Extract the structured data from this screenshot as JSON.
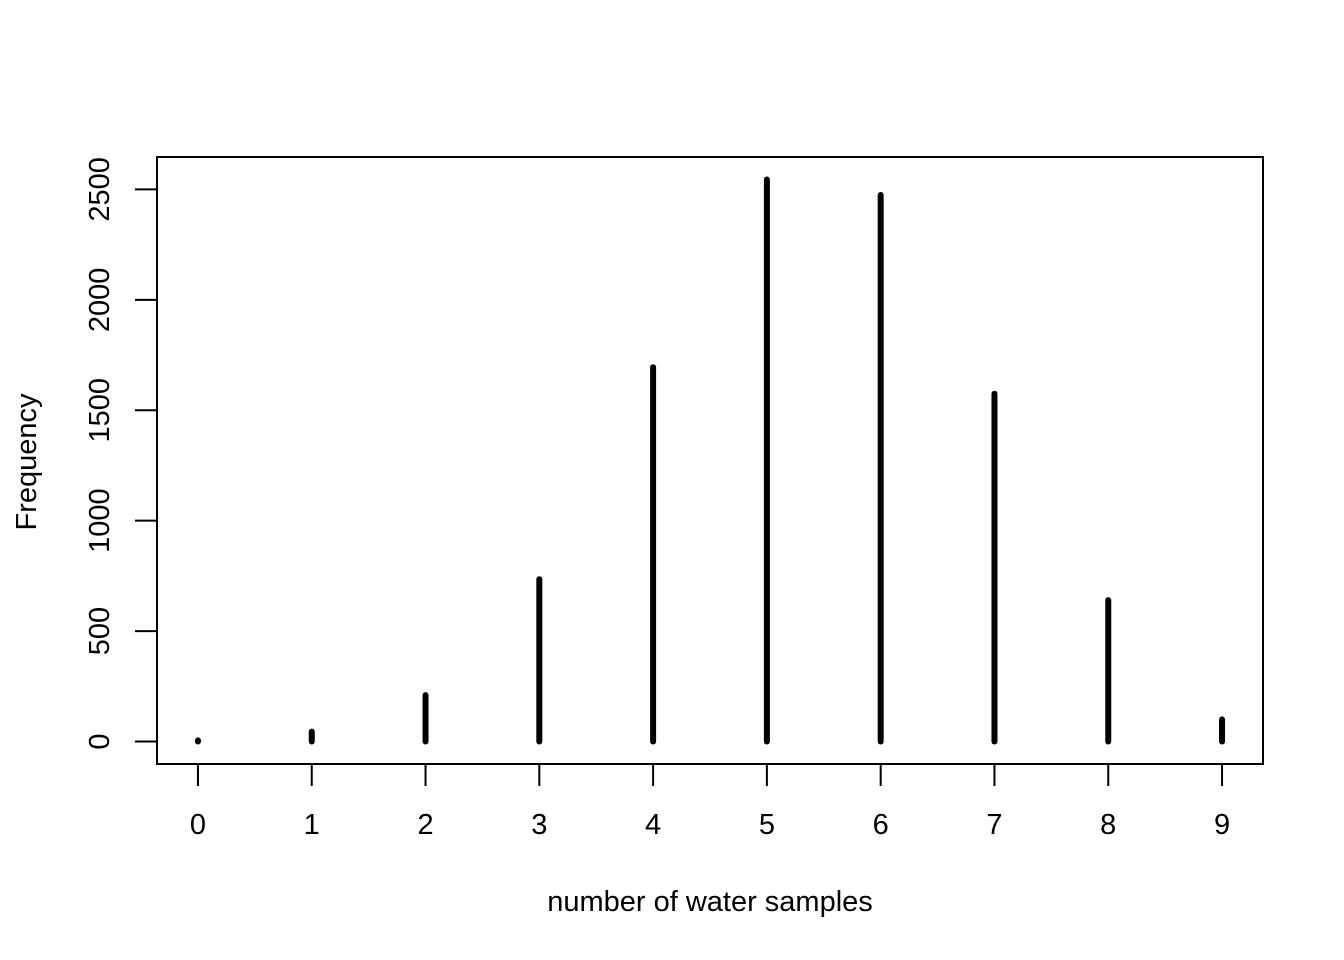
{
  "chart_data": {
    "type": "bar",
    "style": "histogram spikes",
    "xlabel": "number of water samples",
    "ylabel": "Frequency",
    "categories": [
      "0",
      "1",
      "2",
      "3",
      "4",
      "5",
      "6",
      "7",
      "8",
      "9"
    ],
    "x": [
      0,
      1,
      2,
      3,
      4,
      5,
      6,
      7,
      8,
      9
    ],
    "values": [
      5,
      45,
      210,
      735,
      1695,
      2545,
      2475,
      1575,
      640,
      100
    ],
    "xlim": [
      -0.36,
      9.36
    ],
    "ylim": [
      -101.8,
      2646.8
    ],
    "xticks": [
      "0",
      "1",
      "2",
      "3",
      "4",
      "5",
      "6",
      "7",
      "8",
      "9"
    ],
    "yticks": [
      "0",
      "500",
      "1000",
      "1500",
      "2000",
      "2500"
    ],
    "ytick_values": [
      0,
      500,
      1000,
      1500,
      2000,
      2500
    ],
    "grid": false,
    "legend": "none",
    "color": "#000000"
  }
}
